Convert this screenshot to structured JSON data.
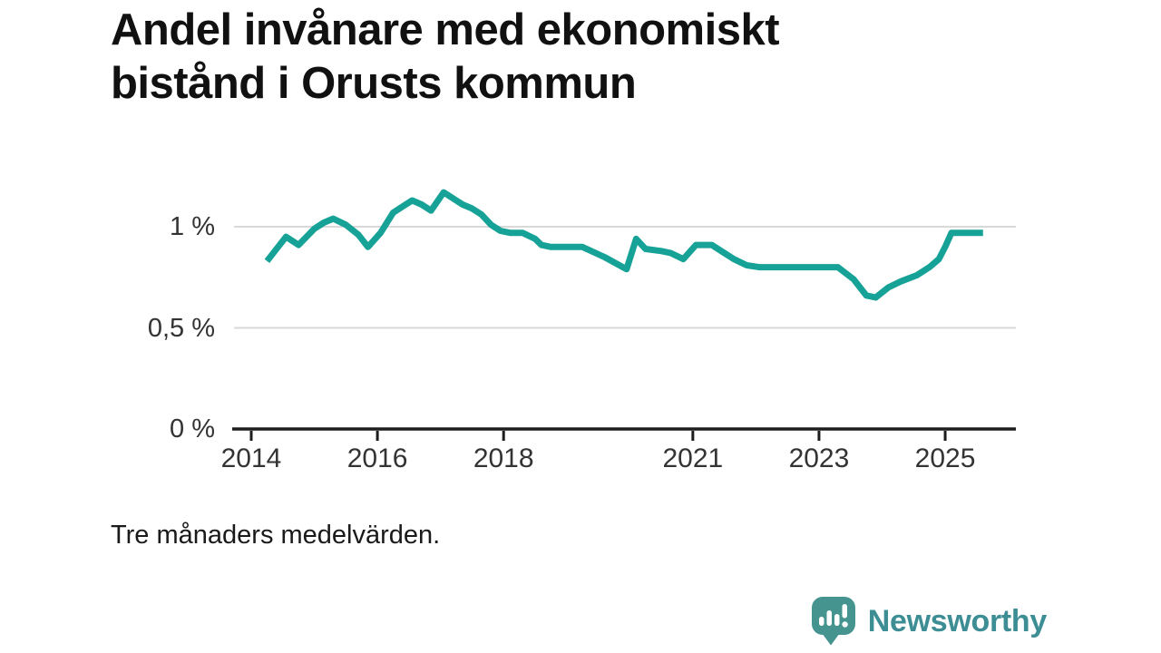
{
  "header": {
    "title_line1": "Andel invånare med ekonomiskt",
    "title_line2": "bistånd i Orusts kommun"
  },
  "footnote": "Tre månaders medelvärden.",
  "branding": {
    "name": "Newsworthy",
    "icon_color": "#45948f",
    "text_color": "#3d8d95"
  },
  "colors": {
    "line": "#17a298",
    "grid": "#d9d9d9",
    "axis": "#1d1d1d",
    "tick_label": "#333333"
  },
  "chart_data": {
    "type": "line",
    "title": "Andel invånare med ekonomiskt bistånd i Orusts kommun",
    "subtitle": "Tre månaders medelvärden.",
    "unit": "%",
    "xlabel": "",
    "ylabel": "",
    "grid": "horizontal",
    "legend": "none",
    "xlim": [
      2013.7,
      2026.1
    ],
    "ylim": [
      0,
      1.3
    ],
    "x_ticks": [
      2014,
      2016,
      2018,
      2021,
      2023,
      2025
    ],
    "x_tick_labels": [
      "2014",
      "2016",
      "2018",
      "2021",
      "2023",
      "2025"
    ],
    "y_ticks": [
      0,
      0.5,
      1
    ],
    "y_tick_labels": [
      "0 %",
      "0,5 %",
      "1 %"
    ],
    "x": [
      2014.25,
      2014.55,
      2014.75,
      2015.0,
      2015.15,
      2015.3,
      2015.5,
      2015.7,
      2015.85,
      2016.05,
      2016.25,
      2016.4,
      2016.55,
      2016.7,
      2016.85,
      2017.05,
      2017.2,
      2017.35,
      2017.5,
      2017.65,
      2017.8,
      2017.95,
      2018.1,
      2018.3,
      2018.5,
      2018.6,
      2018.75,
      2019.25,
      2019.6,
      2019.95,
      2020.1,
      2020.25,
      2020.5,
      2020.65,
      2020.85,
      2021.05,
      2021.3,
      2021.5,
      2021.65,
      2021.85,
      2022.05,
      2023.3,
      2023.55,
      2023.75,
      2023.9,
      2024.1,
      2024.3,
      2024.55,
      2024.75,
      2024.9,
      2025.0,
      2025.1,
      2025.6
    ],
    "values": [
      0.83,
      0.95,
      0.91,
      0.99,
      1.02,
      1.04,
      1.01,
      0.96,
      0.9,
      0.97,
      1.07,
      1.1,
      1.13,
      1.11,
      1.08,
      1.17,
      1.14,
      1.11,
      1.09,
      1.06,
      1.01,
      0.98,
      0.97,
      0.97,
      0.94,
      0.91,
      0.9,
      0.9,
      0.85,
      0.79,
      0.94,
      0.89,
      0.88,
      0.87,
      0.84,
      0.91,
      0.91,
      0.87,
      0.84,
      0.81,
      0.8,
      0.8,
      0.74,
      0.66,
      0.65,
      0.7,
      0.73,
      0.76,
      0.8,
      0.84,
      0.9,
      0.97,
      0.97
    ]
  }
}
